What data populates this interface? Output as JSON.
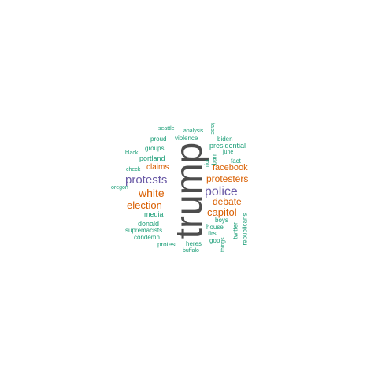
{
  "colors": {
    "large": "#4d4d4d",
    "purple": "#6a5aa6",
    "orange": "#d95f02",
    "green": "#1b9e77"
  },
  "words": {
    "trump": "trump",
    "police": "police",
    "protests": "protests",
    "white": "white",
    "election": "election",
    "capitol": "capitol",
    "debate": "debate",
    "protesters": "protesters",
    "facebook": "facebook",
    "claims": "claims",
    "media": "media",
    "donald": "donald",
    "supremacists": "supremacists",
    "condemn": "condemn",
    "protest": "protest",
    "heres": "heres",
    "buffalo": "buffalo",
    "portland": "portland",
    "groups": "groups",
    "proud": "proud",
    "violence": "violence",
    "black": "black",
    "check": "check",
    "oregon": "oregon",
    "seattle": "seattle",
    "analysis": "analysis",
    "false": "false",
    "biden": "biden",
    "presidential": "presidential",
    "june": "june",
    "riot": "riot",
    "barr": "barr",
    "fact": "fact",
    "boys": "boys",
    "house": "house",
    "first": "first",
    "gop": "gop",
    "twitter": "twitter",
    "republicans": "republicans",
    "things": "things"
  }
}
